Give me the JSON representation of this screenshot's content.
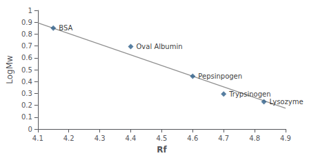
{
  "chart_data": {
    "type": "scatter",
    "xlabel": "Rf",
    "ylabel": "LogMw",
    "xlim": [
      4.1,
      4.9
    ],
    "ylim": [
      0,
      1.0
    ],
    "xticks": [
      4.1,
      4.2,
      4.3,
      4.4,
      4.5,
      4.6,
      4.7,
      4.8,
      4.9
    ],
    "yticks": [
      0,
      0.1,
      0.2,
      0.3,
      0.4,
      0.5,
      0.6,
      0.7,
      0.8,
      0.9,
      1
    ],
    "grid": false,
    "series": [
      {
        "type": "line",
        "color": "#909090",
        "x": [
          4.1,
          4.9
        ],
        "values": [
          0.895,
          0.175
        ]
      },
      {
        "type": "scatter",
        "color": "#2E5F8A",
        "marker": "diamond",
        "x": [
          4.15,
          4.4,
          4.6,
          4.7,
          4.83
        ],
        "values": [
          0.85,
          0.695,
          0.445,
          0.295,
          0.23
        ],
        "labels": [
          "BSA",
          "Oval Albumin",
          "Pepsinpogen",
          "Trypsinogen",
          "Lysozyme"
        ]
      }
    ]
  }
}
